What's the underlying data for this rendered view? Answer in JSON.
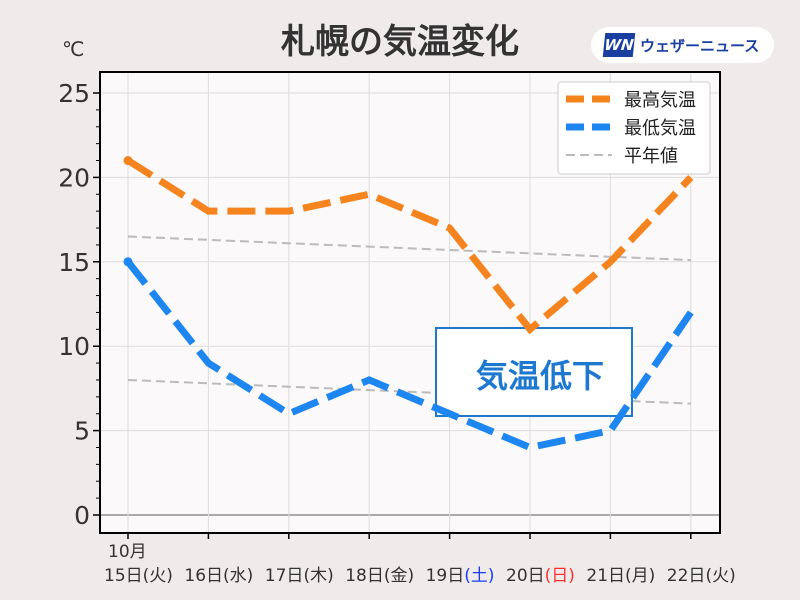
{
  "logo": {
    "mark": "WN",
    "text": "ウェザーニュース"
  },
  "chart_data": {
    "type": "line",
    "title": "札幌の気温変化",
    "ylabel": "℃",
    "ylim": [
      0,
      25
    ],
    "yticks": [
      0,
      5,
      10,
      15,
      20,
      25
    ],
    "month_label": "10月",
    "categories": [
      {
        "day": "15日",
        "dow": "(火)",
        "color": "#333333"
      },
      {
        "day": "16日",
        "dow": "(水)",
        "color": "#333333"
      },
      {
        "day": "17日",
        "dow": "(木)",
        "color": "#333333"
      },
      {
        "day": "18日",
        "dow": "(金)",
        "color": "#333333"
      },
      {
        "day": "19日",
        "dow": "(土)",
        "color": "#1a3cff"
      },
      {
        "day": "20日",
        "dow": "(日)",
        "color": "#ff3030"
      },
      {
        "day": "21日",
        "dow": "(月)",
        "color": "#333333"
      },
      {
        "day": "22日",
        "dow": "(火)",
        "color": "#333333"
      }
    ],
    "series": [
      {
        "name": "最高気温",
        "color": "#f5841f",
        "values": [
          21,
          18,
          18,
          19,
          17,
          11,
          15,
          20
        ]
      },
      {
        "name": "最低気温",
        "color": "#1e86f0",
        "values": [
          15,
          9,
          6,
          8,
          6,
          4,
          5,
          12
        ]
      },
      {
        "name": "平年値",
        "color": "#bbbbbb",
        "values": [
          16.5,
          16.3,
          16.1,
          15.9,
          15.7,
          15.5,
          15.3,
          15.1
        ]
      },
      {
        "name": "平年値-low",
        "color": "#bbbbbb",
        "values": [
          8.0,
          7.8,
          7.6,
          7.4,
          7.2,
          7.0,
          6.8,
          6.6
        ]
      }
    ],
    "legend_position": "top-right",
    "annotation": "気温低下",
    "grid": true
  }
}
